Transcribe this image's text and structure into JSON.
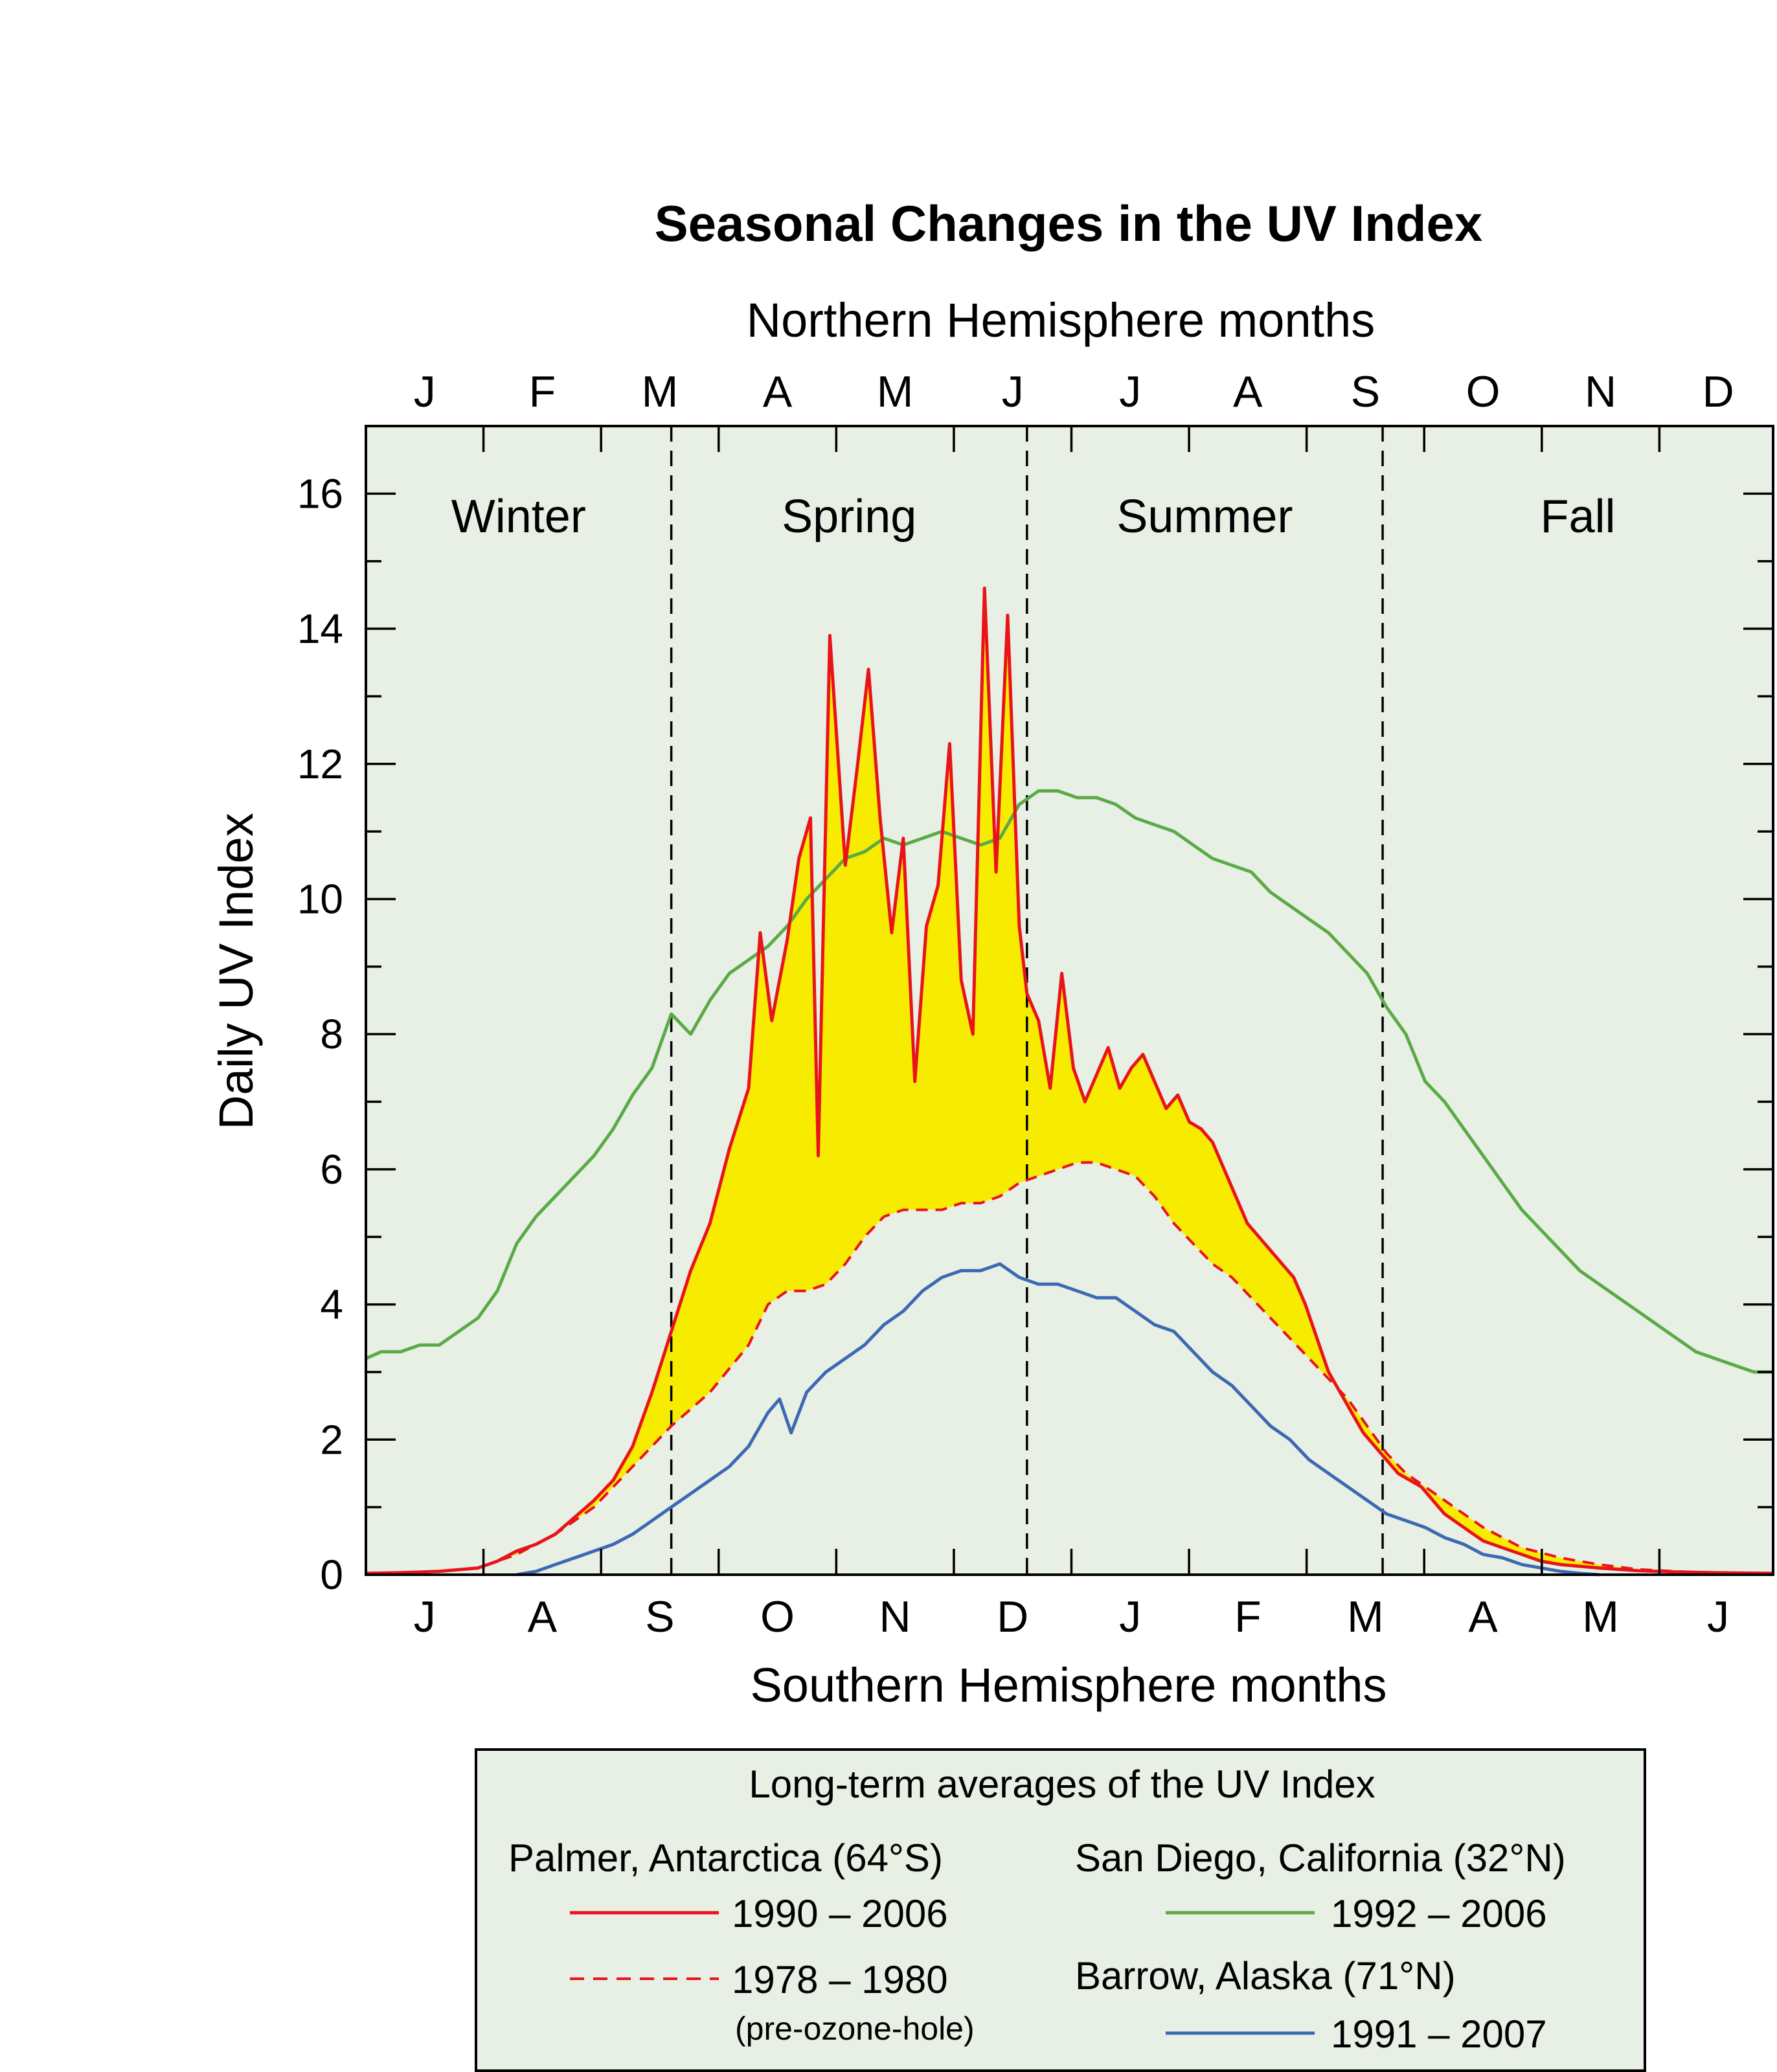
{
  "chart_data": {
    "type": "line",
    "title": "Seasonal Changes in the UV Index",
    "xlabel_top": "Northern Hemisphere months",
    "xlabel_bottom": "Southern Hemisphere months",
    "ylabel": "Daily UV Index",
    "ylim": [
      0,
      17
    ],
    "yticks": [
      0,
      2,
      4,
      6,
      8,
      10,
      12,
      14,
      16
    ],
    "x_unit": "northern-hemisphere day of year",
    "xlim": [
      1,
      365
    ],
    "months_top": [
      "J",
      "F",
      "M",
      "A",
      "M",
      "J",
      "J",
      "A",
      "S",
      "O",
      "N",
      "D"
    ],
    "months_bottom": [
      "J",
      "A",
      "S",
      "O",
      "N",
      "D",
      "J",
      "F",
      "M",
      "A",
      "M",
      "J"
    ],
    "seasons": [
      "Winter",
      "Spring",
      "Summer",
      "Fall"
    ],
    "season_boundaries": [
      80,
      172,
      264
    ],
    "fill_between": {
      "upper": "Palmer 1990–2006",
      "lower": "Palmer 1978–1980",
      "color": "#f7ec00"
    },
    "background": "#e8efe4",
    "series": [
      {
        "name": "San Diego 1992–2006",
        "color": "#5aaa46",
        "style": "solid",
        "points": [
          [
            1,
            3.2
          ],
          [
            5,
            3.3
          ],
          [
            10,
            3.3
          ],
          [
            15,
            3.4
          ],
          [
            20,
            3.4
          ],
          [
            25,
            3.6
          ],
          [
            30,
            3.8
          ],
          [
            35,
            4.2
          ],
          [
            40,
            4.9
          ],
          [
            45,
            5.3
          ],
          [
            50,
            5.6
          ],
          [
            55,
            5.9
          ],
          [
            60,
            6.2
          ],
          [
            65,
            6.6
          ],
          [
            70,
            7.1
          ],
          [
            75,
            7.5
          ],
          [
            80,
            8.3
          ],
          [
            85,
            8.0
          ],
          [
            90,
            8.5
          ],
          [
            95,
            8.9
          ],
          [
            100,
            9.1
          ],
          [
            105,
            9.3
          ],
          [
            110,
            9.6
          ],
          [
            115,
            10.0
          ],
          [
            120,
            10.3
          ],
          [
            125,
            10.6
          ],
          [
            130,
            10.7
          ],
          [
            135,
            10.9
          ],
          [
            140,
            10.8
          ],
          [
            145,
            10.9
          ],
          [
            150,
            11.0
          ],
          [
            155,
            10.9
          ],
          [
            160,
            10.8
          ],
          [
            165,
            10.9
          ],
          [
            170,
            11.4
          ],
          [
            175,
            11.6
          ],
          [
            180,
            11.6
          ],
          [
            185,
            11.5
          ],
          [
            190,
            11.5
          ],
          [
            195,
            11.4
          ],
          [
            200,
            11.2
          ],
          [
            205,
            11.1
          ],
          [
            210,
            11.0
          ],
          [
            215,
            10.8
          ],
          [
            220,
            10.6
          ],
          [
            225,
            10.5
          ],
          [
            230,
            10.4
          ],
          [
            235,
            10.1
          ],
          [
            240,
            9.9
          ],
          [
            245,
            9.7
          ],
          [
            250,
            9.5
          ],
          [
            255,
            9.2
          ],
          [
            260,
            8.9
          ],
          [
            265,
            8.4
          ],
          [
            270,
            8.0
          ],
          [
            275,
            7.3
          ],
          [
            280,
            7.0
          ],
          [
            285,
            6.6
          ],
          [
            290,
            6.2
          ],
          [
            295,
            5.8
          ],
          [
            300,
            5.4
          ],
          [
            305,
            5.1
          ],
          [
            310,
            4.8
          ],
          [
            315,
            4.5
          ],
          [
            320,
            4.3
          ],
          [
            325,
            4.1
          ],
          [
            330,
            3.9
          ],
          [
            335,
            3.7
          ],
          [
            340,
            3.5
          ],
          [
            345,
            3.3
          ],
          [
            350,
            3.2
          ],
          [
            355,
            3.1
          ],
          [
            360,
            3.0
          ],
          [
            365,
            3.0
          ]
        ]
      },
      {
        "name": "Palmer 1990–2006",
        "color": "#e8141a",
        "style": "solid",
        "points": [
          [
            1,
            0.02
          ],
          [
            10,
            0.03
          ],
          [
            20,
            0.05
          ],
          [
            30,
            0.1
          ],
          [
            35,
            0.2
          ],
          [
            40,
            0.35
          ],
          [
            45,
            0.45
          ],
          [
            50,
            0.6
          ],
          [
            55,
            0.85
          ],
          [
            60,
            1.1
          ],
          [
            65,
            1.4
          ],
          [
            70,
            1.9
          ],
          [
            75,
            2.7
          ],
          [
            80,
            3.6
          ],
          [
            85,
            4.5
          ],
          [
            90,
            5.2
          ],
          [
            95,
            6.3
          ],
          [
            100,
            7.2
          ],
          [
            103,
            9.5
          ],
          [
            106,
            8.2
          ],
          [
            110,
            9.4
          ],
          [
            113,
            10.6
          ],
          [
            116,
            11.2
          ],
          [
            118,
            6.2
          ],
          [
            121,
            13.9
          ],
          [
            125,
            10.5
          ],
          [
            128,
            11.9
          ],
          [
            131,
            13.4
          ],
          [
            134,
            11.2
          ],
          [
            137,
            9.5
          ],
          [
            140,
            10.9
          ],
          [
            143,
            7.3
          ],
          [
            146,
            9.6
          ],
          [
            149,
            10.2
          ],
          [
            152,
            12.3
          ],
          [
            155,
            8.8
          ],
          [
            158,
            8.0
          ],
          [
            161,
            14.6
          ],
          [
            164,
            10.4
          ],
          [
            167,
            14.2
          ],
          [
            170,
            9.6
          ],
          [
            172,
            8.6
          ],
          [
            175,
            8.2
          ],
          [
            178,
            7.2
          ],
          [
            181,
            8.9
          ],
          [
            184,
            7.5
          ],
          [
            187,
            7.0
          ],
          [
            190,
            7.4
          ],
          [
            193,
            7.8
          ],
          [
            196,
            7.2
          ],
          [
            199,
            7.5
          ],
          [
            202,
            7.7
          ],
          [
            205,
            7.3
          ],
          [
            208,
            6.9
          ],
          [
            211,
            7.1
          ],
          [
            214,
            6.7
          ],
          [
            217,
            6.6
          ],
          [
            220,
            6.4
          ],
          [
            223,
            6.0
          ],
          [
            226,
            5.6
          ],
          [
            229,
            5.2
          ],
          [
            232,
            5.0
          ],
          [
            235,
            4.8
          ],
          [
            238,
            4.6
          ],
          [
            241,
            4.4
          ],
          [
            244,
            4.0
          ],
          [
            247,
            3.5
          ],
          [
            250,
            3.0
          ],
          [
            253,
            2.7
          ],
          [
            256,
            2.4
          ],
          [
            259,
            2.1
          ],
          [
            262,
            1.9
          ],
          [
            265,
            1.7
          ],
          [
            268,
            1.5
          ],
          [
            271,
            1.4
          ],
          [
            274,
            1.3
          ],
          [
            277,
            1.1
          ],
          [
            280,
            0.9
          ],
          [
            285,
            0.7
          ],
          [
            290,
            0.5
          ],
          [
            295,
            0.4
          ],
          [
            300,
            0.3
          ],
          [
            305,
            0.2
          ],
          [
            310,
            0.15
          ],
          [
            320,
            0.1
          ],
          [
            330,
            0.06
          ],
          [
            340,
            0.04
          ],
          [
            350,
            0.03
          ],
          [
            365,
            0.02
          ]
        ]
      },
      {
        "name": "Palmer 1978–1980",
        "color": "#e8141a",
        "style": "dashed",
        "points": [
          [
            1,
            0.02
          ],
          [
            10,
            0.03
          ],
          [
            20,
            0.05
          ],
          [
            30,
            0.1
          ],
          [
            40,
            0.3
          ],
          [
            50,
            0.6
          ],
          [
            60,
            1.0
          ],
          [
            70,
            1.6
          ],
          [
            80,
            2.2
          ],
          [
            90,
            2.7
          ],
          [
            100,
            3.4
          ],
          [
            105,
            4.0
          ],
          [
            110,
            4.2
          ],
          [
            115,
            4.2
          ],
          [
            120,
            4.3
          ],
          [
            125,
            4.6
          ],
          [
            130,
            5.0
          ],
          [
            135,
            5.3
          ],
          [
            140,
            5.4
          ],
          [
            145,
            5.4
          ],
          [
            150,
            5.4
          ],
          [
            155,
            5.5
          ],
          [
            160,
            5.5
          ],
          [
            165,
            5.6
          ],
          [
            170,
            5.8
          ],
          [
            175,
            5.9
          ],
          [
            180,
            6.0
          ],
          [
            185,
            6.1
          ],
          [
            190,
            6.1
          ],
          [
            195,
            6.0
          ],
          [
            200,
            5.9
          ],
          [
            205,
            5.6
          ],
          [
            210,
            5.2
          ],
          [
            215,
            4.9
          ],
          [
            220,
            4.6
          ],
          [
            225,
            4.4
          ],
          [
            230,
            4.1
          ],
          [
            235,
            3.8
          ],
          [
            240,
            3.5
          ],
          [
            245,
            3.2
          ],
          [
            250,
            2.9
          ],
          [
            255,
            2.6
          ],
          [
            260,
            2.2
          ],
          [
            265,
            1.8
          ],
          [
            270,
            1.5
          ],
          [
            275,
            1.3
          ],
          [
            280,
            1.1
          ],
          [
            285,
            0.9
          ],
          [
            290,
            0.7
          ],
          [
            295,
            0.55
          ],
          [
            300,
            0.4
          ],
          [
            310,
            0.25
          ],
          [
            320,
            0.15
          ],
          [
            330,
            0.08
          ],
          [
            340,
            0.05
          ],
          [
            350,
            0.03
          ],
          [
            365,
            0.02
          ]
        ]
      },
      {
        "name": "Barrow 1991–2007",
        "color": "#3b69b3",
        "style": "solid",
        "points": [
          [
            40,
            0.0
          ],
          [
            45,
            0.05
          ],
          [
            50,
            0.15
          ],
          [
            55,
            0.25
          ],
          [
            60,
            0.35
          ],
          [
            65,
            0.45
          ],
          [
            70,
            0.6
          ],
          [
            75,
            0.8
          ],
          [
            80,
            1.0
          ],
          [
            85,
            1.2
          ],
          [
            90,
            1.4
          ],
          [
            95,
            1.6
          ],
          [
            100,
            1.9
          ],
          [
            105,
            2.4
          ],
          [
            108,
            2.6
          ],
          [
            111,
            2.1
          ],
          [
            115,
            2.7
          ],
          [
            120,
            3.0
          ],
          [
            125,
            3.2
          ],
          [
            130,
            3.4
          ],
          [
            135,
            3.7
          ],
          [
            140,
            3.9
          ],
          [
            145,
            4.2
          ],
          [
            150,
            4.4
          ],
          [
            155,
            4.5
          ],
          [
            160,
            4.5
          ],
          [
            165,
            4.6
          ],
          [
            170,
            4.4
          ],
          [
            175,
            4.3
          ],
          [
            180,
            4.3
          ],
          [
            185,
            4.2
          ],
          [
            190,
            4.1
          ],
          [
            195,
            4.1
          ],
          [
            200,
            3.9
          ],
          [
            205,
            3.7
          ],
          [
            210,
            3.6
          ],
          [
            215,
            3.3
          ],
          [
            220,
            3.0
          ],
          [
            225,
            2.8
          ],
          [
            230,
            2.5
          ],
          [
            235,
            2.2
          ],
          [
            240,
            2.0
          ],
          [
            245,
            1.7
          ],
          [
            250,
            1.5
          ],
          [
            255,
            1.3
          ],
          [
            260,
            1.1
          ],
          [
            265,
            0.9
          ],
          [
            270,
            0.8
          ],
          [
            275,
            0.7
          ],
          [
            280,
            0.55
          ],
          [
            285,
            0.45
          ],
          [
            290,
            0.3
          ],
          [
            295,
            0.25
          ],
          [
            300,
            0.15
          ],
          [
            305,
            0.1
          ],
          [
            310,
            0.05
          ],
          [
            315,
            0.02
          ],
          [
            320,
            0.0
          ]
        ]
      }
    ]
  },
  "legend": {
    "title": "Long-term averages of the UV Index",
    "palmer_heading": "Palmer, Antarctica (64°S)",
    "palmer_recent": "1990 – 2006",
    "palmer_old": "1978 – 1980",
    "palmer_old_note": "(pre-ozone-hole)",
    "sandiego_heading": "San Diego, California (32°N)",
    "sandiego_years": "1992 – 2006",
    "barrow_heading": "Barrow, Alaska (71°N)",
    "barrow_years": "1991 – 2007"
  }
}
